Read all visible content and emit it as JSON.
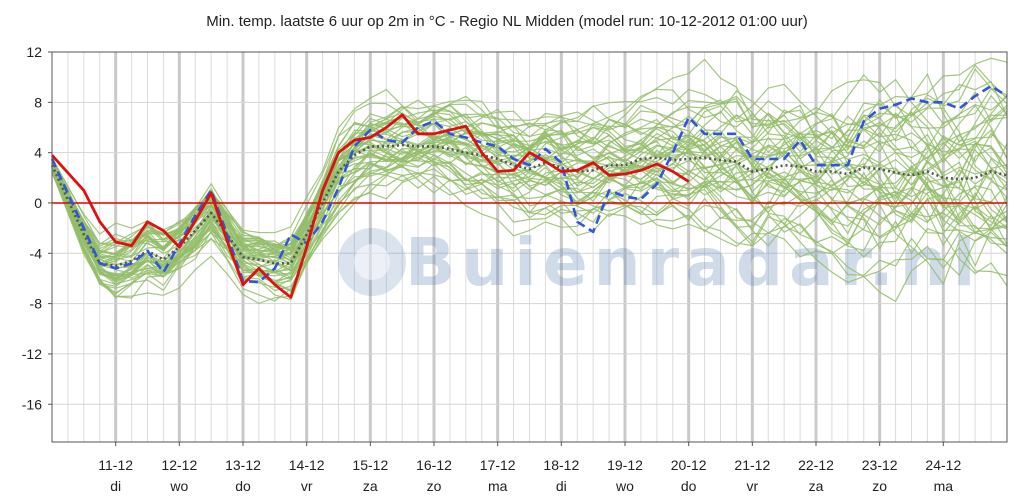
{
  "chart_data": {
    "type": "line",
    "title": "Min. temp. laatste 6 uur op 2m in °C - Regio NL Midden (model run: 10-12-2012 01:00 uur)",
    "ylim": [
      -19,
      12
    ],
    "yticks": [
      12,
      8,
      4,
      0,
      -4,
      -8,
      -12,
      -16
    ],
    "xlim": [
      0,
      15
    ],
    "grid": true,
    "zero_line_color": "#e00000",
    "watermark": "Buienradar.nl",
    "categories": [
      {
        "date": "11-12",
        "day": "di"
      },
      {
        "date": "12-12",
        "day": "wo"
      },
      {
        "date": "13-12",
        "day": "do"
      },
      {
        "date": "14-12",
        "day": "vr"
      },
      {
        "date": "15-12",
        "day": "za"
      },
      {
        "date": "16-12",
        "day": "zo"
      },
      {
        "date": "17-12",
        "day": "ma"
      },
      {
        "date": "18-12",
        "day": "di"
      },
      {
        "date": "19-12",
        "day": "wo"
      },
      {
        "date": "20-12",
        "day": "do"
      },
      {
        "date": "21-12",
        "day": "vr"
      },
      {
        "date": "22-12",
        "day": "za"
      },
      {
        "date": "23-12",
        "day": "zo"
      },
      {
        "date": "24-12",
        "day": "ma"
      }
    ],
    "series": [
      {
        "role": "operational",
        "color": "#3355dd",
        "style": "dashed",
        "x": [
          0,
          0.5,
          0.75,
          1,
          1.25,
          1.5,
          1.75,
          2,
          2.25,
          2.5,
          2.75,
          3,
          3.25,
          3.5,
          3.75,
          4,
          4.25,
          4.5,
          4.75,
          5,
          5.25,
          5.5,
          5.75,
          6,
          6.25,
          6.5,
          6.75,
          7,
          7.25,
          7.5,
          7.75,
          8,
          8.25,
          8.5,
          8.75,
          9,
          9.25,
          9.5,
          9.75,
          10,
          10.25,
          10.5,
          10.75,
          11,
          11.25,
          11.5,
          11.75,
          12,
          12.25,
          12.5,
          12.75,
          13,
          13.25,
          13.5,
          13.75,
          14,
          14.25,
          14.5,
          14.75,
          15
        ],
        "y": [
          3.5,
          -2,
          -4.8,
          -5.2,
          -4.8,
          -3.8,
          -5.5,
          -3.3,
          -1,
          1,
          -2.5,
          -6.2,
          -6.3,
          -5.2,
          -2.5,
          -3.2,
          -1.5,
          1.2,
          4.5,
          5.8,
          5,
          4.8,
          6,
          6.5,
          5.5,
          5.2,
          4.8,
          4.5,
          3.5,
          3,
          4.3,
          3.2,
          -1.5,
          -2.3,
          1,
          0.5,
          0.3,
          1.5,
          4,
          6.8,
          5.5,
          5.5,
          5.5,
          3.5,
          3.5,
          3.5,
          5,
          3,
          3,
          3,
          6.5,
          7.5,
          7.8,
          8.3,
          8,
          8,
          7.5,
          8.5,
          9.3,
          8.5
        ]
      },
      {
        "role": "observed",
        "color": "#dd1111",
        "style": "solid",
        "x": [
          0,
          0.5,
          0.75,
          1,
          1.25,
          1.5,
          1.75,
          2,
          2.25,
          2.5,
          2.75,
          3,
          3.25,
          3.5,
          3.75,
          4,
          4.25,
          4.5,
          4.75,
          5,
          5.25,
          5.5,
          5.75,
          6,
          6.25,
          6.5,
          6.75,
          7,
          7.25,
          7.5,
          7.75,
          8,
          8.25,
          8.5,
          8.75,
          9,
          9.25,
          9.5,
          9.75,
          10
        ],
        "y": [
          3.8,
          1,
          -1.5,
          -3.1,
          -3.4,
          -1.5,
          -2.2,
          -3.5,
          -1.4,
          0.8,
          -3,
          -6.5,
          -5.2,
          -6.5,
          -7.5,
          -3.5,
          1,
          4,
          5,
          5.2,
          6,
          7,
          5.5,
          5.5,
          5.8,
          6.1,
          4,
          2.5,
          2.6,
          4,
          3.3,
          2.5,
          2.6,
          3.2,
          2.2,
          2.3,
          2.6,
          3.1,
          2.5,
          1.7
        ]
      },
      {
        "role": "ensemble-mean",
        "color": "#555555",
        "style": "dotted",
        "x": [
          0,
          0.5,
          0.75,
          1,
          1.25,
          1.5,
          1.75,
          2,
          2.25,
          2.5,
          2.75,
          3,
          3.25,
          3.5,
          3.75,
          4,
          4.25,
          4.5,
          4.75,
          5,
          5.25,
          5.5,
          5.75,
          6,
          6.25,
          6.5,
          6.75,
          7,
          7.25,
          7.5,
          7.75,
          8,
          8.25,
          8.5,
          8.75,
          9,
          9.25,
          9.5,
          9.75,
          10,
          10.25,
          10.5,
          10.75,
          11,
          11.25,
          11.5,
          11.75,
          12,
          12.25,
          12.5,
          12.75,
          13,
          13.25,
          13.5,
          13.75,
          14,
          14.25,
          14.5,
          14.75,
          15
        ],
        "y": [
          3,
          -2.5,
          -4.8,
          -5,
          -4.6,
          -3.8,
          -4.5,
          -3.5,
          -2.2,
          -0.8,
          -2.5,
          -4.3,
          -4.5,
          -4.8,
          -4.8,
          -2.5,
          0,
          2.5,
          3.8,
          4.5,
          4.5,
          4.6,
          4.5,
          4.5,
          4.3,
          4,
          3.8,
          3.5,
          3,
          2.7,
          3.2,
          2.8,
          2.5,
          2.6,
          3,
          3,
          3.5,
          3.6,
          3.4,
          3.5,
          3.6,
          3.4,
          3.3,
          2.5,
          2.7,
          3,
          2.9,
          2.5,
          2.5,
          2.3,
          2.8,
          2.7,
          2.4,
          2.2,
          2.5,
          2,
          1.9,
          2,
          2.5,
          2.2
        ]
      }
    ]
  }
}
